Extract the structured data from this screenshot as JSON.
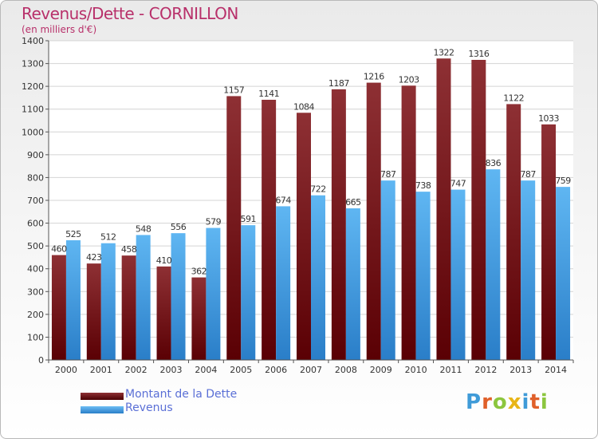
{
  "title": "Revenus/Dette - CORNILLON",
  "subtitle": "(en milliers d'€)",
  "logo_text": "Proxiti",
  "colors": {
    "dette": "#7b1a1d",
    "revenus": "#3d9ae0",
    "title": "#b8306a",
    "legend_text": "#5a6fd6"
  },
  "chart_data": {
    "type": "bar",
    "title": "Revenus/Dette - CORNILLON",
    "ylabel": "(en milliers d'€)",
    "xlabel": "",
    "categories": [
      "2000",
      "2001",
      "2002",
      "2003",
      "2004",
      "2005",
      "2006",
      "2007",
      "2008",
      "2009",
      "2010",
      "2011",
      "2012",
      "2013",
      "2014"
    ],
    "ylim": [
      0,
      1400
    ],
    "yticks": [
      0,
      100,
      200,
      300,
      400,
      500,
      600,
      700,
      800,
      900,
      1000,
      1100,
      1200,
      1300,
      1400
    ],
    "grid": true,
    "legend_position": "bottom-left",
    "series": [
      {
        "name": "Montant de la Dette",
        "values": [
          460,
          423,
          458,
          410,
          362,
          1157,
          1141,
          1084,
          1187,
          1216,
          1203,
          1322,
          1316,
          1122,
          1033
        ]
      },
      {
        "name": "Revenus",
        "values": [
          525,
          512,
          548,
          556,
          579,
          591,
          674,
          722,
          665,
          787,
          738,
          747,
          836,
          787,
          759
        ]
      }
    ]
  }
}
